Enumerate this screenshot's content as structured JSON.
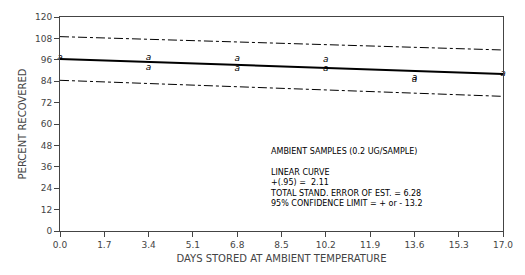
{
  "chart_data": {
    "type": "line",
    "title": "",
    "xlabel": "DAYS STORED AT AMBIENT TEMPERATURE",
    "ylabel": "PERCENT RECOVERED",
    "xlim": [
      0.0,
      17.0
    ],
    "ylim": [
      0,
      120
    ],
    "xticks": [
      {
        "value": 0.0,
        "label": "0.0"
      },
      1.7,
      3.4,
      5.1,
      6.8,
      8.5,
      10.2,
      11.9,
      13.6,
      15.3,
      {
        "value": 17.0,
        "label": "17.0"
      }
    ],
    "yticks": [
      0,
      12,
      24,
      36,
      48,
      60,
      72,
      84,
      96,
      108,
      120
    ],
    "grid": false,
    "series": [
      {
        "type": "line",
        "x": [
          0.0,
          17.0
        ],
        "values": [
          96.5,
          88.0
        ],
        "color": "#000000",
        "line_style": "solid"
      },
      {
        "type": "line",
        "x": [
          0.0,
          17.0
        ],
        "values": [
          109.0,
          101.5
        ],
        "color": "#000000",
        "line_style": "dashdot"
      },
      {
        "type": "line",
        "x": [
          0.0,
          17.0
        ],
        "values": [
          84.5,
          75.5
        ],
        "color": "#000000",
        "line_style": "dashdot"
      },
      {
        "type": "scatter",
        "x": [
          0.0,
          3.4,
          3.4,
          6.8,
          6.8,
          10.2,
          10.2,
          13.6,
          13.6,
          17.0
        ],
        "values": [
          97.0,
          97.0,
          91.5,
          96.5,
          91.2,
          96.0,
          91.0,
          85.0,
          86.0,
          88.0
        ],
        "color": "#000000",
        "marker": "a"
      }
    ],
    "annotation": [
      "AMBIENT SAMPLES (0.2 UG/SAMPLE)",
      "LINEAR CURVE",
      "+(.95) =  2.11",
      "TOTAL STAND. ERROR OF EST. = 6.28",
      "95% CONFIDENCE LIMIT = + or - 13.2"
    ]
  }
}
